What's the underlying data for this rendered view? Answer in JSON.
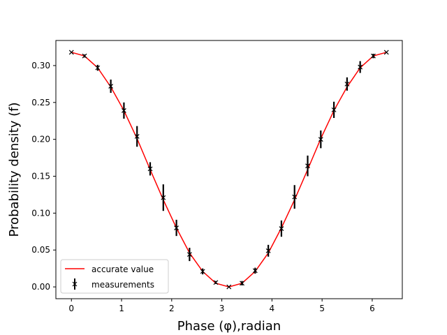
{
  "chart_data": {
    "type": "line",
    "xlabel": "Phase (φ),radian",
    "ylabel": "Probability density (f)",
    "xlim": [
      -0.31,
      6.6
    ],
    "ylim": [
      -0.016,
      0.334
    ],
    "xticks": [
      0,
      1,
      2,
      3,
      4,
      5,
      6
    ],
    "yticks": [
      0.0,
      0.05,
      0.1,
      0.15,
      0.2,
      0.25,
      0.3
    ],
    "ytick_labels": [
      "0.00",
      "0.05",
      "0.10",
      "0.15",
      "0.20",
      "0.25",
      "0.30"
    ],
    "legend_position": "lower-left",
    "grid": false,
    "series": [
      {
        "name": "accurate value",
        "kind": "line",
        "color": "#ff0000",
        "x": [
          0,
          0.2618,
          0.5236,
          0.7854,
          1.0472,
          1.309,
          1.5708,
          1.8326,
          2.0944,
          2.3562,
          2.618,
          2.8798,
          3.1416,
          3.4034,
          3.6652,
          3.927,
          4.1888,
          4.4506,
          4.7124,
          4.9742,
          5.236,
          5.4978,
          5.7596,
          6.0214,
          6.2832
        ],
        "y": [
          0.318,
          0.313,
          0.297,
          0.271,
          0.239,
          0.201,
          0.159,
          0.118,
          0.08,
          0.046,
          0.021,
          0.005,
          0.0,
          0.005,
          0.021,
          0.046,
          0.08,
          0.118,
          0.159,
          0.201,
          0.239,
          0.271,
          0.297,
          0.313,
          0.318
        ]
      },
      {
        "name": "measurements",
        "kind": "errorbar",
        "color": "#000000",
        "x": [
          0,
          0.2618,
          0.5236,
          0.7854,
          1.0472,
          1.309,
          1.5708,
          1.8326,
          2.0944,
          2.3562,
          2.618,
          2.8798,
          3.1416,
          3.4034,
          3.6652,
          3.927,
          4.1888,
          4.4506,
          4.7124,
          4.9742,
          5.236,
          5.4978,
          5.7596,
          6.0214,
          6.2832
        ],
        "y": [
          0.318,
          0.313,
          0.297,
          0.272,
          0.239,
          0.204,
          0.16,
          0.121,
          0.08,
          0.044,
          0.021,
          0.006,
          0.0,
          0.005,
          0.022,
          0.049,
          0.079,
          0.122,
          0.164,
          0.2,
          0.24,
          0.275,
          0.298,
          0.313,
          0.318
        ],
        "yerr": [
          0,
          0.002,
          0.004,
          0.009,
          0.011,
          0.014,
          0.009,
          0.018,
          0.011,
          0.009,
          0.004,
          0.002,
          0,
          0.003,
          0.004,
          0.008,
          0.011,
          0.016,
          0.014,
          0.012,
          0.011,
          0.009,
          0.008,
          0.003,
          0
        ]
      }
    ]
  }
}
